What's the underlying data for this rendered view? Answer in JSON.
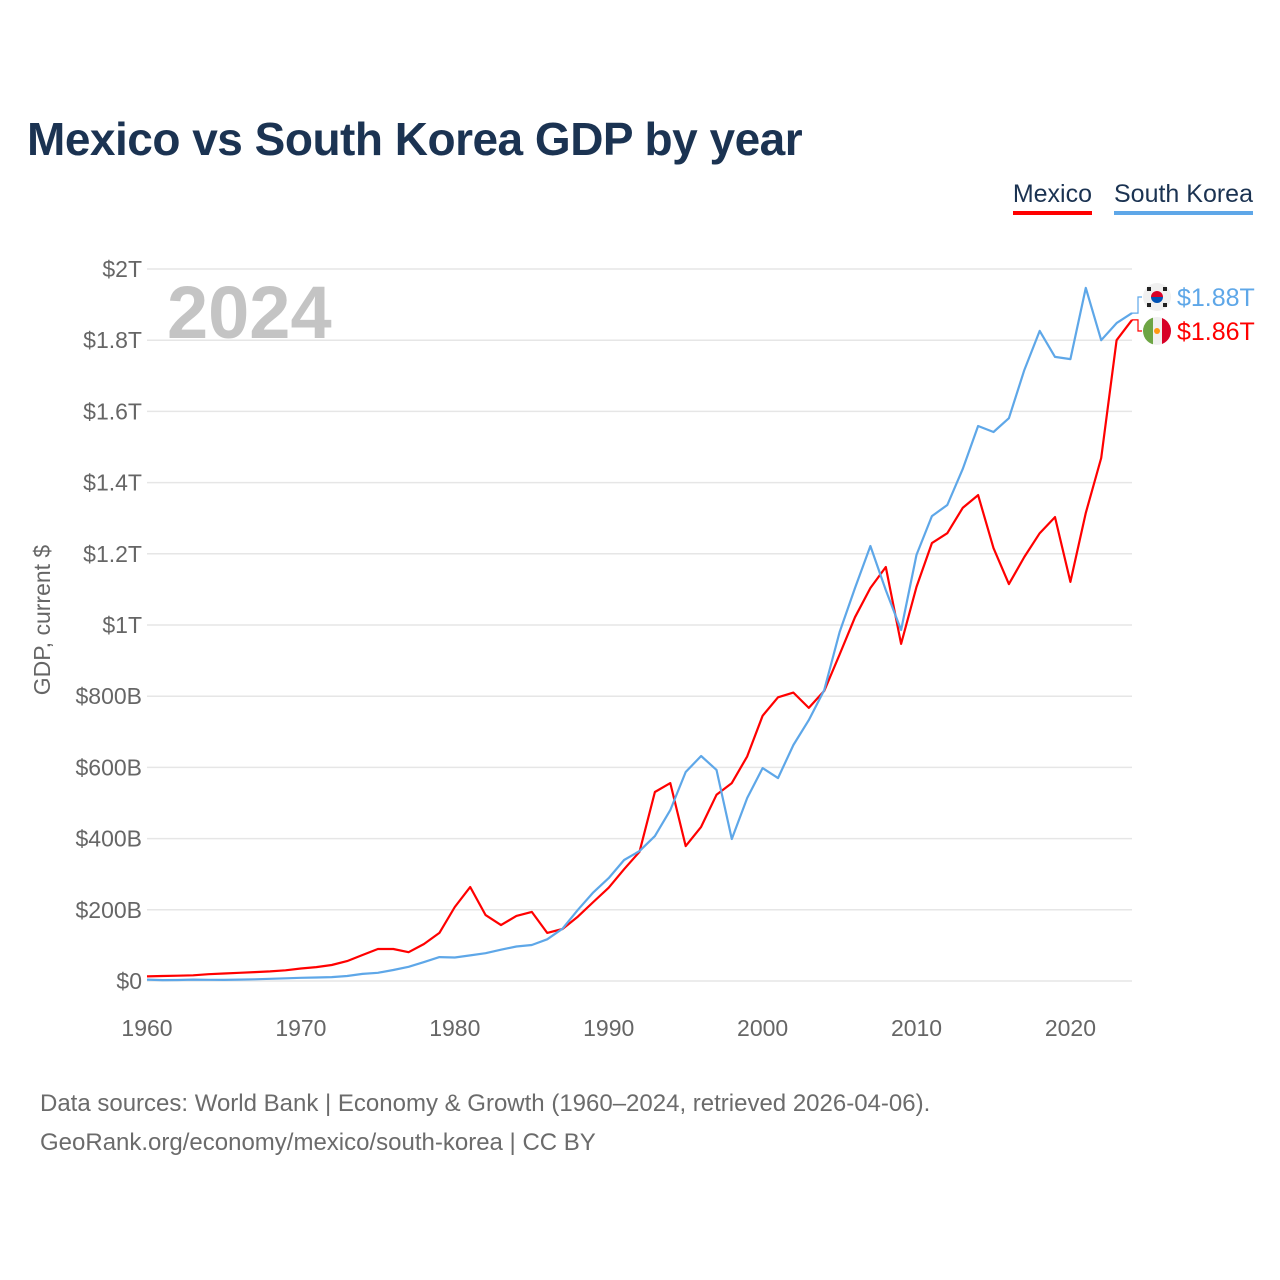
{
  "title": "Mexico vs South Korea GDP by year",
  "legend": [
    {
      "label": "Mexico",
      "color": "#ff0000"
    },
    {
      "label": "South Korea",
      "color": "#5ea7e8"
    }
  ],
  "source_line1": "Data sources: World Bank | Economy & Growth (1960–2024, retrieved 2026-04-06).",
  "source_line2": "GeoRank.org/economy/mexico/south-korea | CC BY",
  "chart_data": {
    "type": "line",
    "title": "Mexico vs South Korea GDP by year",
    "xlabel": "",
    "ylabel": "GDP, current $",
    "year_watermark": "2024",
    "xlim": [
      1960,
      2024
    ],
    "ylim": [
      0,
      2000
    ],
    "units": "billions USD",
    "x_ticks": [
      "1960",
      "1970",
      "1980",
      "1990",
      "2000",
      "2010",
      "2020"
    ],
    "y_ticks": [
      {
        "value": 0,
        "label": "$0"
      },
      {
        "value": 200,
        "label": "$200B"
      },
      {
        "value": 400,
        "label": "$400B"
      },
      {
        "value": 600,
        "label": "$600B"
      },
      {
        "value": 800,
        "label": "$800B"
      },
      {
        "value": 1000,
        "label": "$1T"
      },
      {
        "value": 1200,
        "label": "$1.2T"
      },
      {
        "value": 1400,
        "label": "$1.4T"
      },
      {
        "value": 1600,
        "label": "$1.6T"
      },
      {
        "value": 1800,
        "label": "$1.8T"
      },
      {
        "value": 2000,
        "label": "$2T"
      }
    ],
    "grid": true,
    "legend_position": "top-right",
    "x": [
      1960,
      1961,
      1962,
      1963,
      1964,
      1965,
      1966,
      1967,
      1968,
      1969,
      1970,
      1971,
      1972,
      1973,
      1974,
      1975,
      1976,
      1977,
      1978,
      1979,
      1980,
      1981,
      1982,
      1983,
      1984,
      1985,
      1986,
      1987,
      1988,
      1989,
      1990,
      1991,
      1992,
      1993,
      1994,
      1995,
      1996,
      1997,
      1998,
      1999,
      2000,
      2001,
      2002,
      2003,
      2004,
      2005,
      2006,
      2007,
      2008,
      2009,
      2010,
      2011,
      2012,
      2013,
      2014,
      2015,
      2016,
      2017,
      2018,
      2019,
      2020,
      2021,
      2022,
      2023,
      2024
    ],
    "series": [
      {
        "name": "Mexico",
        "color": "#ff0000",
        "end_label": "$1.86T",
        "values": [
          13,
          14,
          15,
          16,
          19,
          21,
          23,
          25,
          27,
          30,
          35,
          39,
          45,
          56,
          73,
          90,
          90,
          81,
          104,
          135,
          208,
          264,
          185,
          157,
          183,
          194,
          135,
          146,
          181,
          222,
          262,
          314,
          363,
          531,
          556,
          379,
          433,
          523,
          556,
          631,
          745,
          797,
          810,
          767,
          815,
          917,
          1022,
          1104,
          1163,
          947,
          1107,
          1230,
          1258,
          1329,
          1365,
          1216,
          1115,
          1191,
          1258,
          1303,
          1121,
          1315,
          1469,
          1800,
          1857
        ]
      },
      {
        "name": "South Korea",
        "color": "#5ea7e8",
        "end_label": "$1.88T",
        "values": [
          4,
          2.4,
          2.8,
          3.9,
          3.5,
          3.1,
          3.8,
          4.7,
          6.1,
          7.7,
          9,
          9.9,
          10.9,
          14,
          20,
          23,
          31,
          40,
          53,
          67,
          66,
          72,
          78,
          88,
          97,
          101,
          117,
          147,
          200,
          249,
          289,
          340,
          365,
          407,
          480,
          587,
          632,
          593,
          399,
          514,
          598,
          570,
          663,
          733,
          817,
          980,
          1104,
          1222,
          1098,
          986,
          1197,
          1306,
          1337,
          1438,
          1559,
          1542,
          1581,
          1716,
          1826,
          1753,
          1747,
          1947,
          1800,
          1848,
          1876
        ]
      }
    ]
  }
}
